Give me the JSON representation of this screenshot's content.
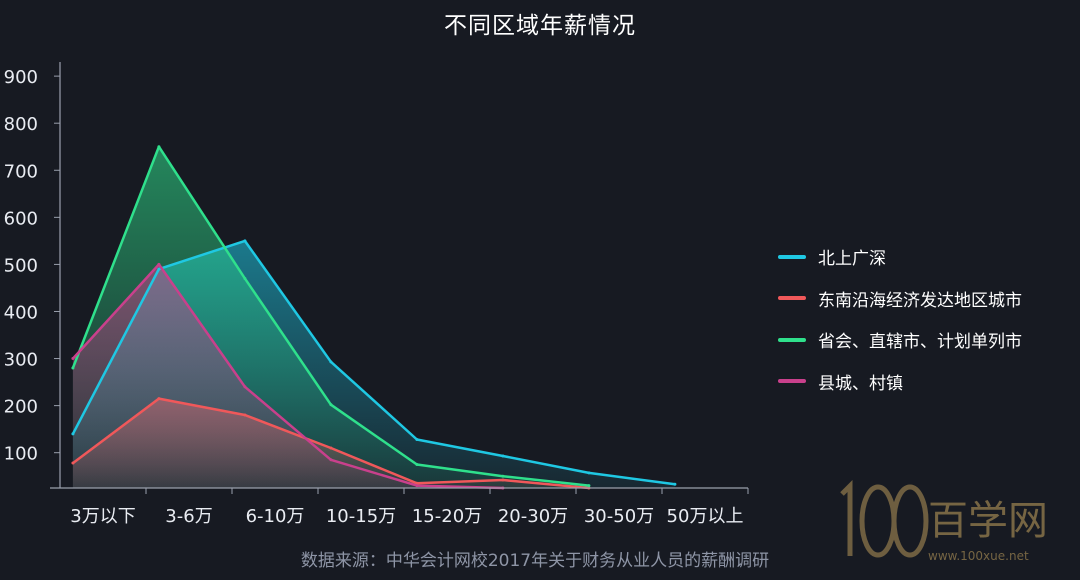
{
  "chart_data": {
    "type": "area",
    "title": "不同区域年薪情况",
    "categories": [
      "3万以下",
      "3-6万",
      "6-10万",
      "10-15万",
      "15-20万",
      "20-30万",
      "30-50万",
      "50万以上"
    ],
    "ylim": [
      25,
      930
    ],
    "yticks": [
      100,
      200,
      300,
      400,
      500,
      600,
      700,
      800,
      900
    ],
    "grid": false,
    "legend_position": "right",
    "series": [
      {
        "name": "北上广深",
        "color": "#1fc8e3",
        "values": [
          140,
          490,
          550,
          293,
          128,
          93,
          57,
          33
        ]
      },
      {
        "name": "东南沿海经济发达地区城市",
        "color": "#f0585a",
        "values": [
          78,
          215,
          180,
          110,
          35,
          42,
          25,
          null
        ]
      },
      {
        "name": "省会、直辖市、计划单列市",
        "color": "#2fe08c",
        "values": [
          280,
          750,
          470,
          202,
          75,
          50,
          30,
          null
        ]
      },
      {
        "name": "县城、村镇",
        "color": "#c9408c",
        "values": [
          300,
          500,
          240,
          85,
          30,
          25,
          null,
          null
        ]
      }
    ]
  },
  "source_note": "数据来源：中华会计网校2017年关于财务从业人员的薪酬调研",
  "watermark": {
    "logo_text": "百学网",
    "url": "www.100xue.net"
  }
}
